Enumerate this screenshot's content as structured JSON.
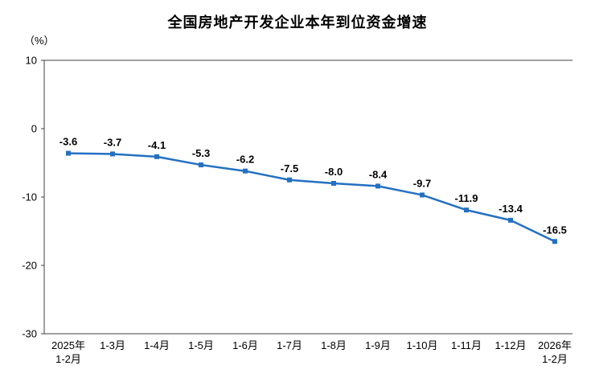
{
  "chart_data": {
    "type": "line",
    "title": "全国房地产开发企业本年到位资金增速",
    "unit_label": "（%）",
    "categories": [
      [
        "2025年",
        "1-2月"
      ],
      [
        "1-3月"
      ],
      [
        "1-4月"
      ],
      [
        "1-5月"
      ],
      [
        "1-6月"
      ],
      [
        "1-7月"
      ],
      [
        "1-8月"
      ],
      [
        "1-9月"
      ],
      [
        "1-10月"
      ],
      [
        "1-11月"
      ],
      [
        "1-12月"
      ],
      [
        "2026年",
        "1-2月"
      ]
    ],
    "values": [
      -3.6,
      -3.7,
      -4.1,
      -5.3,
      -6.2,
      -7.5,
      -8.0,
      -8.4,
      -9.7,
      -11.9,
      -13.4,
      -16.5
    ],
    "data_labels": [
      "-3.6",
      "-3.7",
      "-4.1",
      "-5.3",
      "-6.2",
      "-7.5",
      "-8.0",
      "-8.4",
      "-9.7",
      "-11.9",
      "-13.4",
      "-16.5"
    ],
    "ylim": [
      -30,
      10
    ],
    "y_ticks": [
      "10",
      "0",
      "-10",
      "-20",
      "-30"
    ],
    "xlabel": "",
    "ylabel": "（%）",
    "grid": false,
    "legend_position": "none",
    "line_color": "#2470C2",
    "label_color": "#000000",
    "axis_color": "#404040"
  }
}
